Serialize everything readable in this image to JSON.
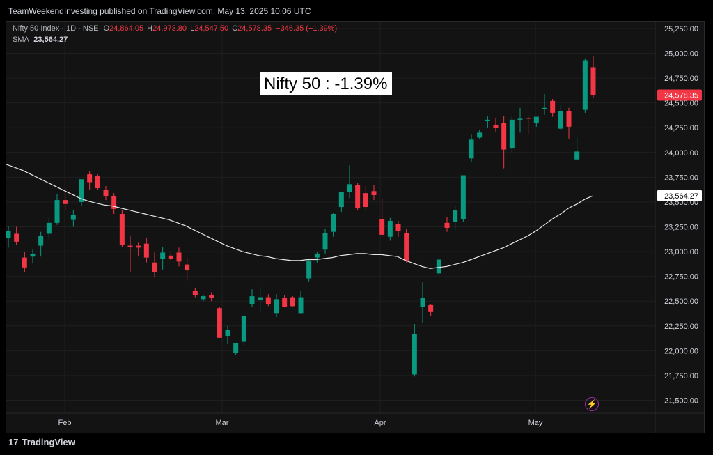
{
  "publish_line": "TeamWeekendInvesting published on TradingView.com, May 13, 2025 10:06 UTC",
  "legend": {
    "symbol": "Nifty 50 Index · 1D · NSE",
    "o_label": "O",
    "o": "24,864.05",
    "h_label": "H",
    "h": "24,973.80",
    "l_label": "L",
    "l": "24,547.50",
    "c_label": "C",
    "c": "24,578.35",
    "change": "−346.35 (−1.39%)",
    "sma_label": "SMA",
    "sma": "23,564.27"
  },
  "annotation": "Nifty 50 : -1.39%",
  "footer": "TradingView",
  "colors": {
    "up": "#089981",
    "down": "#f23645",
    "sma": "#e8e8e8",
    "bg": "#131313"
  },
  "chart_data": {
    "type": "candlestick",
    "y_ticks": [
      "25,250.00",
      "25,000.00",
      "24,750.00",
      "24,500.00",
      "24,250.00",
      "24,000.00",
      "23,750.00",
      "23,500.00",
      "23,250.00",
      "23,000.00",
      "22,750.00",
      "22,500.00",
      "22,250.00",
      "22,000.00",
      "21,750.00",
      "21,500.00"
    ],
    "y_tick_values": [
      25250,
      25000,
      24750,
      24500,
      24250,
      24000,
      23750,
      23500,
      23250,
      23000,
      22750,
      22500,
      22250,
      22000,
      21750,
      21500
    ],
    "ylim": [
      21370,
      25320
    ],
    "x_labels": [
      "Feb",
      "Mar",
      "Apr",
      "May"
    ],
    "last_price_label": "24,578.35",
    "last_price": 24578.35,
    "sma_price_label": "23,564.27",
    "sma_price": 23564.27,
    "candles": [
      {
        "o": 23140,
        "h": 23260,
        "l": 23040,
        "c": 23210
      },
      {
        "o": 23180,
        "h": 23250,
        "l": 23070,
        "c": 23100
      },
      {
        "o": 22940,
        "h": 23000,
        "l": 22790,
        "c": 22840
      },
      {
        "o": 22950,
        "h": 23020,
        "l": 22880,
        "c": 22980
      },
      {
        "o": 23060,
        "h": 23200,
        "l": 22950,
        "c": 23160
      },
      {
        "o": 23180,
        "h": 23340,
        "l": 23130,
        "c": 23290
      },
      {
        "o": 23290,
        "h": 23580,
        "l": 23270,
        "c": 23520
      },
      {
        "o": 23520,
        "h": 23640,
        "l": 23420,
        "c": 23480
      },
      {
        "o": 23320,
        "h": 23420,
        "l": 23250,
        "c": 23370
      },
      {
        "o": 23500,
        "h": 23720,
        "l": 23460,
        "c": 23730
      },
      {
        "o": 23780,
        "h": 23810,
        "l": 23620,
        "c": 23700
      },
      {
        "o": 23760,
        "h": 23780,
        "l": 23620,
        "c": 23640
      },
      {
        "o": 23620,
        "h": 23660,
        "l": 23520,
        "c": 23560
      },
      {
        "o": 23560,
        "h": 23590,
        "l": 23380,
        "c": 23430
      },
      {
        "o": 23380,
        "h": 23420,
        "l": 23050,
        "c": 23070
      },
      {
        "o": 23060,
        "h": 23160,
        "l": 22790,
        "c": 23050
      },
      {
        "o": 23060,
        "h": 23090,
        "l": 22960,
        "c": 23040
      },
      {
        "o": 23080,
        "h": 23140,
        "l": 22890,
        "c": 22940
      },
      {
        "o": 22890,
        "h": 22990,
        "l": 22740,
        "c": 22790
      },
      {
        "o": 22930,
        "h": 23050,
        "l": 22820,
        "c": 22990
      },
      {
        "o": 22960,
        "h": 23000,
        "l": 22910,
        "c": 22930
      },
      {
        "o": 22990,
        "h": 23040,
        "l": 22850,
        "c": 22900
      },
      {
        "o": 22870,
        "h": 22940,
        "l": 22710,
        "c": 22810
      },
      {
        "o": 22600,
        "h": 22630,
        "l": 22540,
        "c": 22560
      },
      {
        "o": 22520,
        "h": 22560,
        "l": 22500,
        "c": 22550
      },
      {
        "o": 22560,
        "h": 22590,
        "l": 22500,
        "c": 22530
      },
      {
        "o": 22430,
        "h": 22440,
        "l": 22140,
        "c": 22130
      },
      {
        "o": 22150,
        "h": 22250,
        "l": 22070,
        "c": 22210
      },
      {
        "o": 21980,
        "h": 22080,
        "l": 21960,
        "c": 22080
      },
      {
        "o": 22090,
        "h": 22350,
        "l": 22050,
        "c": 22350
      },
      {
        "o": 22470,
        "h": 22620,
        "l": 22440,
        "c": 22550
      },
      {
        "o": 22510,
        "h": 22640,
        "l": 22390,
        "c": 22540
      },
      {
        "o": 22540,
        "h": 22570,
        "l": 22450,
        "c": 22470
      },
      {
        "o": 22380,
        "h": 22570,
        "l": 22340,
        "c": 22520
      },
      {
        "o": 22530,
        "h": 22560,
        "l": 22440,
        "c": 22440
      },
      {
        "o": 22540,
        "h": 22550,
        "l": 22440,
        "c": 22450
      },
      {
        "o": 22380,
        "h": 22600,
        "l": 22370,
        "c": 22540
      },
      {
        "o": 22730,
        "h": 22920,
        "l": 22700,
        "c": 22910
      },
      {
        "o": 22940,
        "h": 23000,
        "l": 22890,
        "c": 22980
      },
      {
        "o": 23020,
        "h": 23230,
        "l": 22980,
        "c": 23190
      },
      {
        "o": 23200,
        "h": 23390,
        "l": 23150,
        "c": 23380
      },
      {
        "o": 23450,
        "h": 23600,
        "l": 23400,
        "c": 23600
      },
      {
        "o": 23600,
        "h": 23870,
        "l": 23540,
        "c": 23680
      },
      {
        "o": 23670,
        "h": 23690,
        "l": 23420,
        "c": 23440
      },
      {
        "o": 23590,
        "h": 23660,
        "l": 23420,
        "c": 23450
      },
      {
        "o": 23610,
        "h": 23670,
        "l": 23520,
        "c": 23570
      },
      {
        "o": 23330,
        "h": 23530,
        "l": 23150,
        "c": 23170
      },
      {
        "o": 23150,
        "h": 23340,
        "l": 23110,
        "c": 23310
      },
      {
        "o": 23280,
        "h": 23310,
        "l": 23150,
        "c": 23210
      },
      {
        "o": 23190,
        "h": 23230,
        "l": 22890,
        "c": 22910
      },
      {
        "o": 21760,
        "h": 22270,
        "l": 21740,
        "c": 22170
      },
      {
        "o": 22440,
        "h": 22690,
        "l": 22280,
        "c": 22530
      },
      {
        "o": 22460,
        "h": 22470,
        "l": 22350,
        "c": 22390
      },
      {
        "o": 22780,
        "h": 22920,
        "l": 22760,
        "c": 22920
      },
      {
        "o": 23290,
        "h": 23350,
        "l": 23200,
        "c": 23240
      },
      {
        "o": 23300,
        "h": 23460,
        "l": 23220,
        "c": 23420
      },
      {
        "o": 23330,
        "h": 23760,
        "l": 23300,
        "c": 23770
      },
      {
        "o": 23940,
        "h": 24180,
        "l": 23900,
        "c": 24130
      },
      {
        "o": 24150,
        "h": 24230,
        "l": 24140,
        "c": 24200
      },
      {
        "o": 24330,
        "h": 24370,
        "l": 24250,
        "c": 24330
      },
      {
        "o": 24280,
        "h": 24350,
        "l": 24210,
        "c": 24250
      },
      {
        "o": 24300,
        "h": 24370,
        "l": 23840,
        "c": 24030
      },
      {
        "o": 24040,
        "h": 24370,
        "l": 24000,
        "c": 24330
      },
      {
        "o": 24330,
        "h": 24450,
        "l": 24200,
        "c": 24340
      },
      {
        "o": 24350,
        "h": 24370,
        "l": 24190,
        "c": 24340
      },
      {
        "o": 24300,
        "h": 24360,
        "l": 24260,
        "c": 24360
      },
      {
        "o": 24450,
        "h": 24590,
        "l": 24380,
        "c": 24450
      },
      {
        "o": 24520,
        "h": 24540,
        "l": 24360,
        "c": 24400
      },
      {
        "o": 24240,
        "h": 24480,
        "l": 24220,
        "c": 24420
      },
      {
        "o": 24420,
        "h": 24450,
        "l": 24140,
        "c": 24260
      },
      {
        "o": 23930,
        "h": 24150,
        "l": 23930,
        "c": 24010
      },
      {
        "o": 24430,
        "h": 24950,
        "l": 24400,
        "c": 24930
      },
      {
        "o": 24860,
        "h": 24970,
        "l": 24550,
        "c": 24580
      }
    ],
    "sma_series": [
      23880,
      23850,
      23820,
      23780,
      23740,
      23700,
      23660,
      23620,
      23580,
      23540,
      23510,
      23490,
      23470,
      23460,
      23440,
      23420,
      23400,
      23380,
      23360,
      23340,
      23320,
      23290,
      23260,
      23220,
      23180,
      23140,
      23100,
      23060,
      23030,
      23000,
      22980,
      22960,
      22950,
      22930,
      22920,
      22910,
      22910,
      22920,
      22920,
      22930,
      22940,
      22960,
      22970,
      22980,
      22980,
      22970,
      22970,
      22960,
      22950,
      22910,
      22880,
      22850,
      22830,
      22840,
      22850,
      22870,
      22890,
      22920,
      22950,
      22980,
      23010,
      23040,
      23080,
      23120,
      23160,
      23210,
      23270,
      23330,
      23380,
      23440,
      23480,
      23530,
      23564
    ]
  }
}
